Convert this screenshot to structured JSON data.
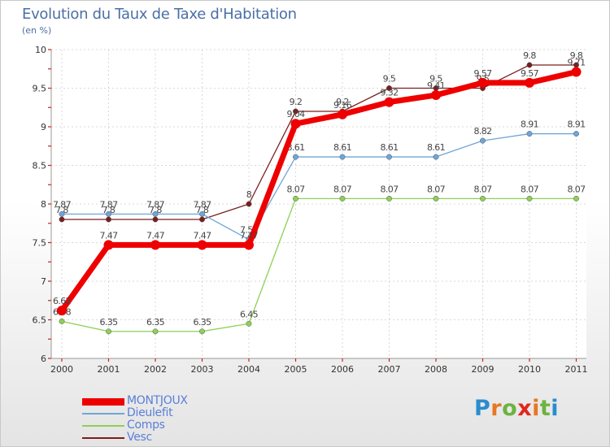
{
  "title": "Evolution du Taux de Taxe d'Habitation",
  "unit": "(en %)",
  "logo": {
    "letters": [
      "P",
      "r",
      "o",
      "x",
      "i",
      "t",
      "i"
    ],
    "colors": [
      "#2a8ccf",
      "#e87722",
      "#6cb33f",
      "#e1261c",
      "#e87722",
      "#6cb33f",
      "#2a8ccf"
    ]
  },
  "chart_data": {
    "type": "line",
    "title": "Evolution du Taux de Taxe d'Habitation",
    "ylabel": "(en %)",
    "xlabel": "",
    "ylim": [
      6,
      10
    ],
    "yticks": [
      "6",
      "6.5",
      "7",
      "7.5",
      "8",
      "8.5",
      "9",
      "9.5",
      "10"
    ],
    "categories": [
      "2000",
      "2001",
      "2002",
      "2003",
      "2004",
      "2005",
      "2006",
      "2007",
      "2008",
      "2009",
      "2010",
      "2011"
    ],
    "series": [
      {
        "name": "Vesc",
        "color": "#7a1e1e",
        "values": [
          7.8,
          7.8,
          7.8,
          7.8,
          8,
          9.2,
          9.2,
          9.5,
          9.5,
          9.5,
          9.8,
          9.8
        ],
        "labels": [
          "7.8",
          "7.8",
          "7.8",
          "7.8",
          "8",
          "9.2",
          "9.2",
          "9.5",
          "9.5",
          "9.5",
          "9.8",
          "9.8"
        ]
      },
      {
        "name": "Comps",
        "color": "#8ed055",
        "values": [
          6.48,
          6.35,
          6.35,
          6.35,
          6.45,
          8.07,
          8.07,
          8.07,
          8.07,
          8.07,
          8.07,
          8.07
        ],
        "labels": [
          "6.48",
          "6.35",
          "6.35",
          "6.35",
          "6.45",
          "8.07",
          "8.07",
          "8.07",
          "8.07",
          "8.07",
          "8.07",
          "8.07"
        ]
      },
      {
        "name": "Dieulefit",
        "color": "#6ea6d8",
        "values": [
          7.87,
          7.87,
          7.87,
          7.87,
          7.54,
          8.61,
          8.61,
          8.61,
          8.61,
          8.82,
          8.91,
          8.91
        ],
        "labels": [
          "7.87",
          "7.87",
          "7.87",
          "7.87",
          "7.54",
          "8.61",
          "8.61",
          "8.61",
          "8.61",
          "8.82",
          "8.91",
          "8.91"
        ]
      },
      {
        "name": "MONTJOUX",
        "color": "#ee0000",
        "values": [
          6.62,
          7.47,
          7.47,
          7.47,
          7.47,
          9.04,
          9.16,
          9.32,
          9.41,
          9.57,
          9.57,
          9.71
        ],
        "labels": [
          "6.62",
          "7.47",
          "7.47",
          "7.47",
          "7.47",
          "9.04",
          "9.16",
          "9.32",
          "9.41",
          "9.57",
          "9.57",
          "9.71"
        ]
      }
    ]
  },
  "legend": [
    {
      "label": "MONTJOUX",
      "color": "#ee0000",
      "thickness": "9"
    },
    {
      "label": "Dieulefit",
      "color": "#6ea6d8",
      "thickness": "2"
    },
    {
      "label": "Comps",
      "color": "#8ed055",
      "thickness": "2"
    },
    {
      "label": "Vesc",
      "color": "#7a1e1e",
      "thickness": "2"
    }
  ]
}
